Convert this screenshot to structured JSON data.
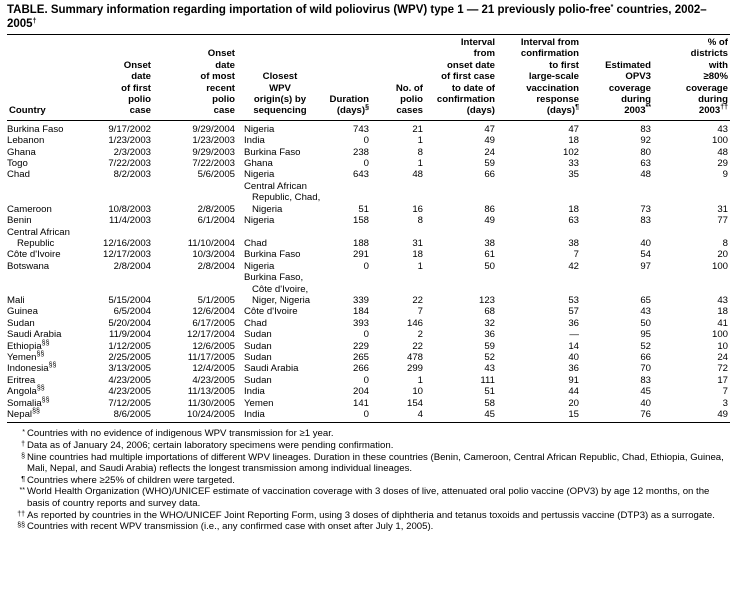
{
  "title": {
    "text": "TABLE. Summary information regarding importation of wild poliovirus (WPV) type 1 — 21 previously polio-free",
    "note1": "*",
    "text2": " countries, 2002–2005",
    "note2": "†"
  },
  "table": {
    "headers": [
      {
        "lines": [
          "Country"
        ]
      },
      {
        "lines": [
          "Onset",
          "date",
          "of first",
          "polio",
          "case"
        ]
      },
      {
        "lines": [
          "Onset",
          "date",
          "of most",
          "recent",
          "polio",
          "case"
        ]
      },
      {
        "lines": [
          "Closest",
          "WPV",
          "origin(s) by",
          "sequencing"
        ]
      },
      {
        "lines": [
          "Duration",
          "(days)"
        ],
        "note": "§"
      },
      {
        "lines": [
          "No. of",
          "polio",
          "cases"
        ]
      },
      {
        "lines": [
          "Interval",
          "from",
          "onset date",
          "of first case",
          "to date of",
          "confirmation",
          "(days)"
        ]
      },
      {
        "lines": [
          "Interval from",
          "confirmation",
          "to first",
          "large-scale",
          "vaccination",
          "response",
          "(days)"
        ],
        "note": "¶"
      },
      {
        "lines": [
          "Estimated",
          "OPV3",
          "coverage",
          "during",
          "2003"
        ],
        "note": "**"
      },
      {
        "lines": [
          "% of",
          "districts",
          "with",
          "≥80%",
          "coverage",
          "during",
          "2003"
        ],
        "note": "††"
      }
    ],
    "rows": [
      {
        "cells": [
          "Burkina Faso",
          "9/17/2002",
          "9/29/2004",
          "Nigeria",
          "743",
          "21",
          "47",
          "47",
          "83",
          "43"
        ]
      },
      {
        "cells": [
          "Lebanon",
          "1/23/2003",
          "1/23/2003",
          "India",
          "0",
          "1",
          "49",
          "18",
          "92",
          "100"
        ]
      },
      {
        "cells": [
          "Ghana",
          "2/3/2003",
          "9/29/2003",
          "Burkina Faso",
          "238",
          "8",
          "24",
          "102",
          "80",
          "48"
        ]
      },
      {
        "cells": [
          "Togo",
          "7/22/2003",
          "7/22/2003",
          "Ghana",
          "0",
          "1",
          "59",
          "33",
          "63",
          "29"
        ]
      },
      {
        "cells": [
          "Chad",
          "8/2/2003",
          "5/6/2005",
          "Nigeria",
          "643",
          "48",
          "66",
          "35",
          "48",
          "9"
        ]
      },
      {
        "cells": [
          "Cameroon",
          "10/8/2003",
          "2/8/2005",
          "Central African Republic, Chad, Nigeria",
          "51",
          "16",
          "86",
          "18",
          "73",
          "31"
        ]
      },
      {
        "cells": [
          "Benin",
          "11/4/2003",
          "6/1/2004",
          "Nigeria",
          "158",
          "8",
          "49",
          "63",
          "83",
          "77"
        ]
      },
      {
        "cells": [
          "Central African Republic",
          "12/16/2003",
          "11/10/2004",
          "Chad",
          "188",
          "31",
          "38",
          "38",
          "40",
          "8"
        ]
      },
      {
        "cells": [
          "Côte d'Ivoire",
          "12/17/2003",
          "10/3/2004",
          "Burkina Faso",
          "291",
          "18",
          "61",
          "7",
          "54",
          "20"
        ]
      },
      {
        "cells": [
          "Botswana",
          "2/8/2004",
          "2/8/2004",
          "Nigeria",
          "0",
          "1",
          "50",
          "42",
          "97",
          "100"
        ]
      },
      {
        "cells": [
          "Mali",
          "5/15/2004",
          "5/1/2005",
          "Burkina Faso, Côte d'Ivoire, Niger, Nigeria",
          "339",
          "22",
          "123",
          "53",
          "65",
          "43"
        ]
      },
      {
        "cells": [
          "Guinea",
          "6/5/2004",
          "12/6/2004",
          "Côte d'Ivoire",
          "184",
          "7",
          "68",
          "57",
          "43",
          "18"
        ]
      },
      {
        "cells": [
          "Sudan",
          "5/20/2004",
          "6/17/2005",
          "Chad",
          "393",
          "146",
          "32",
          "36",
          "50",
          "41"
        ]
      },
      {
        "cells": [
          "Saudi Arabia",
          "11/9/2004",
          "12/17/2004",
          "Sudan",
          "0",
          "2",
          "36",
          "—",
          "95",
          "100"
        ]
      },
      {
        "cells": [
          "Ethiopia",
          "1/12/2005",
          "12/6/2005",
          "Sudan",
          "229",
          "22",
          "59",
          "14",
          "52",
          "10"
        ],
        "note": "§§"
      },
      {
        "cells": [
          "Yemen",
          "2/25/2005",
          "11/17/2005",
          "Sudan",
          "265",
          "478",
          "52",
          "40",
          "66",
          "24"
        ],
        "note": "§§"
      },
      {
        "cells": [
          "Indonesia",
          "3/13/2005",
          "12/4/2005",
          "Saudi Arabia",
          "266",
          "299",
          "43",
          "36",
          "70",
          "72"
        ],
        "note": "§§"
      },
      {
        "cells": [
          "Eritrea",
          "4/23/2005",
          "4/23/2005",
          "Sudan",
          "0",
          "1",
          "111",
          "91",
          "83",
          "17"
        ]
      },
      {
        "cells": [
          "Angola",
          "4/23/2005",
          "11/13/2005",
          "India",
          "204",
          "10",
          "51",
          "44",
          "45",
          "7"
        ],
        "note": "§§"
      },
      {
        "cells": [
          "Somalia",
          "7/12/2005",
          "11/30/2005",
          "Yemen",
          "141",
          "154",
          "58",
          "20",
          "40",
          "3"
        ],
        "note": "§§"
      },
      {
        "cells": [
          "Nepal",
          "8/6/2005",
          "10/24/2005",
          "India",
          "0",
          "4",
          "45",
          "15",
          "76",
          "49"
        ],
        "note": "§§"
      }
    ]
  },
  "footnotes": [
    {
      "mark": "*",
      "text": "Countries with no evidence of indigenous WPV transmission for ≥1 year."
    },
    {
      "mark": "†",
      "text": "Data as of January 24, 2006; certain laboratory specimens were pending confirmation."
    },
    {
      "mark": "§",
      "text": "Nine countries had multiple importations of different WPV lineages. Duration in these countries (Benin, Cameroon, Central African Republic, Chad, Ethiopia, Guinea, Mali, Nepal, and Saudi Arabia) reflects the longest transmission among individual lineages."
    },
    {
      "mark": "¶",
      "text": "Countries where ≥25% of children were targeted."
    },
    {
      "mark": "**",
      "text": "World Health Organization (WHO)/UNICEF estimate of vaccination coverage with 3 doses of live, attenuated oral polio vaccine (OPV3) by age 12 months, on the basis of country reports and survey data."
    },
    {
      "mark": "††",
      "text": "As reported by countries in the WHO/UNICEF Joint Reporting Form, using 3 doses of diphtheria and tetanus toxoids and pertussis vaccine (DTP3) as a surrogate."
    },
    {
      "mark": "§§",
      "text": "Countries with recent WPV transmission (i.e., any confirmed case with onset after July 1, 2005)."
    }
  ]
}
